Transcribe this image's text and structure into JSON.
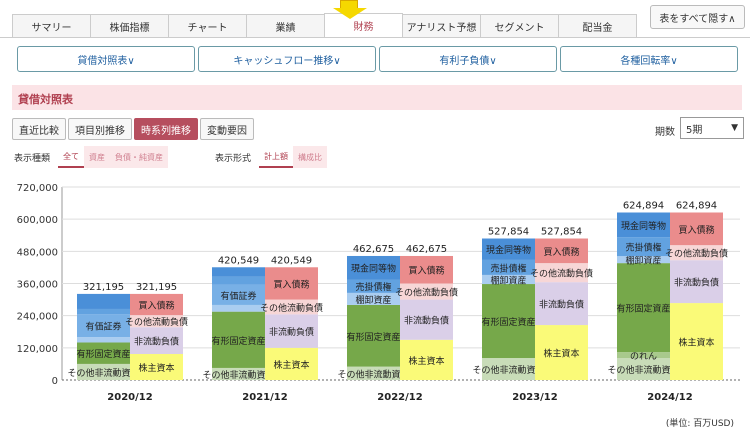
{
  "tabs": [
    "サマリー",
    "株価指標",
    "チャート",
    "業績",
    "財務",
    "アナリスト予想",
    "セグメント",
    "配当金"
  ],
  "active_tab": 4,
  "hide_all_label": "表をすべて隠す∧",
  "subnav": [
    "貸借対照表∨",
    "キャッシュフロー推移∨",
    "有利子負債∨",
    "各種回転率∨"
  ],
  "section_title": "貸借対照表",
  "modes": [
    "直近比較",
    "項目別推移",
    "時系列推移",
    "変動要因"
  ],
  "active_mode": 2,
  "period": {
    "label": "期数",
    "value": "5期"
  },
  "display_type": {
    "label": "表示種類",
    "options": [
      "全て",
      "資産",
      "負債・純資産"
    ],
    "active": 0
  },
  "display_format": {
    "label": "表示形式",
    "options": [
      "計上額",
      "構成比"
    ],
    "active": 0
  },
  "unit_label": "(単位: 百万USD)",
  "chart_data": {
    "type": "stacked-bar",
    "categories": [
      "2020/12",
      "2021/12",
      "2022/12",
      "2023/12",
      "2024/12"
    ],
    "ylim": [
      0,
      720000
    ],
    "yticks": [
      "0",
      "120,000",
      "240,000",
      "360,000",
      "480,000",
      "600,000",
      "720,000"
    ],
    "totals": [
      "321,195",
      "420,549",
      "462,675",
      "527,854",
      "624,894"
    ],
    "assets": [
      {
        "name": "その他非流動資産",
        "color": "#c8dcb8",
        "values": [
          60000,
          45000,
          50000,
          82000,
          82000
        ],
        "labeled": [
          true,
          true,
          true,
          true,
          true
        ]
      },
      {
        "name": "のれん",
        "color": "#a8c98c",
        "values": [
          0,
          0,
          0,
          0,
          22000
        ],
        "labeled": [
          false,
          false,
          false,
          false,
          true
        ]
      },
      {
        "name": "有形固定資産",
        "color": "#76a84a",
        "values": [
          80000,
          210000,
          230000,
          276000,
          332000
        ],
        "labeled": [
          true,
          true,
          true,
          true,
          true
        ]
      },
      {
        "name": "棚卸資産",
        "color": "#aacdf0",
        "values": [
          20000,
          25000,
          45000,
          34000,
          26000
        ],
        "labeled": [
          false,
          false,
          true,
          true,
          true
        ]
      },
      {
        "name": "有価証券",
        "color": "#78b0e6",
        "values": [
          85000,
          75000,
          0,
          0,
          0
        ],
        "labeled": [
          true,
          true,
          false,
          false,
          false
        ]
      },
      {
        "name": "売掛債権",
        "color": "#62a2e0",
        "values": [
          20000,
          30000,
          50000,
          56000,
          71000
        ],
        "labeled": [
          false,
          false,
          true,
          true,
          true
        ]
      },
      {
        "name": "現金同等物",
        "color": "#4a8fd8",
        "values": [
          56195,
          35549,
          87675,
          79854,
          91894
        ],
        "labeled": [
          false,
          false,
          true,
          true,
          true
        ]
      }
    ],
    "liabilities": [
      {
        "name": "株主資本",
        "color": "#fafa78",
        "values": [
          97000,
          120000,
          150000,
          205000,
          287000
        ],
        "labeled": [
          true,
          true,
          true,
          true,
          true
        ]
      },
      {
        "name": "非流動負債",
        "color": "#dacfe8",
        "values": [
          100000,
          125000,
          150000,
          160000,
          160000
        ],
        "labeled": [
          true,
          true,
          true,
          true,
          true
        ]
      },
      {
        "name": "その他流動負債",
        "color": "#f7d6d6",
        "values": [
          45000,
          55000,
          60000,
          71000,
          56000
        ],
        "labeled": [
          true,
          true,
          true,
          true,
          true
        ]
      },
      {
        "name": "買入債務",
        "color": "#ea8c8c",
        "values": [
          79195,
          120549,
          102675,
          91854,
          121894
        ],
        "labeled": [
          true,
          true,
          true,
          true,
          true
        ]
      }
    ]
  }
}
